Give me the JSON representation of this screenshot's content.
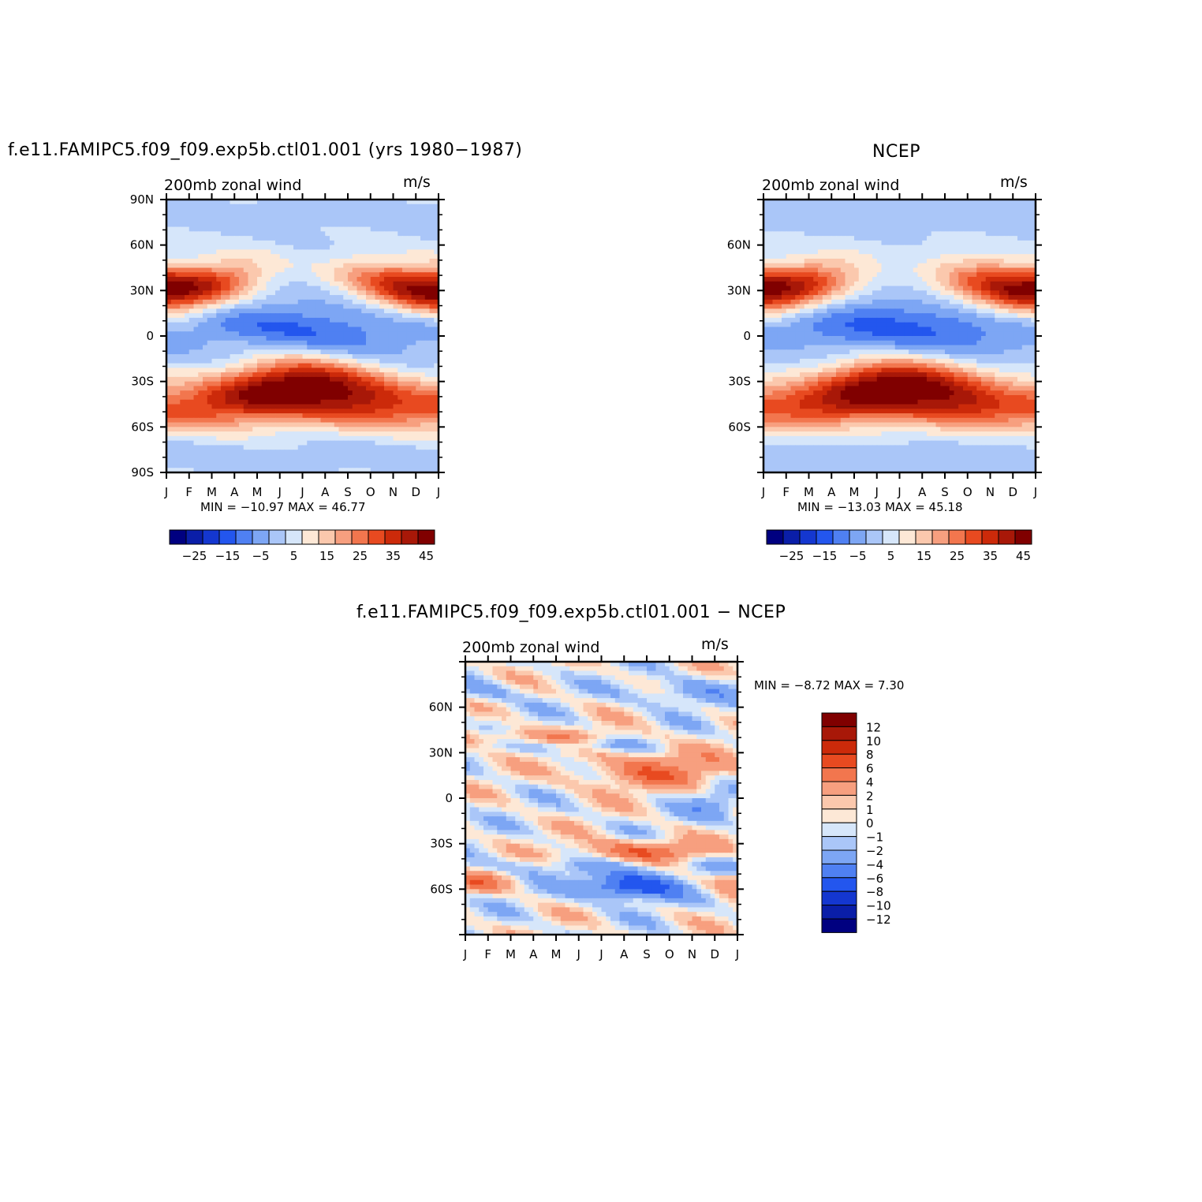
{
  "panels": [
    {
      "title": "f.e11.FAMIPC5.f09_f09.exp5b.ctl01.001 (yrs 1980−1987)",
      "left_label": "200mb zonal wind",
      "right_label": "m/s",
      "stats": "MIN = −10.97 MAX =   46.77"
    },
    {
      "title": "NCEP",
      "left_label": "200mb zonal wind",
      "right_label": "m/s",
      "stats": "MIN = −13.03 MAX =   45.18"
    },
    {
      "title": "f.e11.FAMIPC5.f09_f09.exp5b.ctl01.001 − NCEP",
      "left_label": "200mb zonal wind",
      "right_label": "m/s",
      "stats": "MIN =   −8.72 MAX =     7.30"
    }
  ],
  "colors": {
    "full_levels": [
      "#000080",
      "#0a1ea8",
      "#1437d0",
      "#2356ee",
      "#4f80f2",
      "#7da6f4",
      "#aac6f8",
      "#d6e6fa",
      "#fde8d6",
      "#fbc8ad",
      "#f79f7f",
      "#f2764e",
      "#e84a20",
      "#cc2a0a",
      "#a81808",
      "#800000"
    ],
    "diff_levels": [
      "#000080",
      "#0a1ea8",
      "#1437d0",
      "#2356ee",
      "#4f80f2",
      "#7da6f4",
      "#aac6f8",
      "#d6e6fa",
      "#fde8d6",
      "#fbc8ad",
      "#f79f7f",
      "#f2764e",
      "#e84a20",
      "#cc2a0a",
      "#a81808",
      "#800000"
    ]
  },
  "chart_data": [
    {
      "type": "heatmap",
      "title": "f.e11.FAMIPC5.f09_f09.exp5b.ctl01.001 (yrs 1980−1987)",
      "variable": "200mb zonal wind",
      "units": "m/s",
      "x_ticks": [
        "J",
        "F",
        "M",
        "A",
        "M",
        "J",
        "J",
        "A",
        "S",
        "O",
        "N",
        "D",
        "J"
      ],
      "y_ticks": [
        "90N",
        "60N",
        "30N",
        "0",
        "30S",
        "60S",
        "90S"
      ],
      "ylim": [
        "90S",
        "90N"
      ],
      "colorbar_labels": [
        "−25",
        "−15",
        "−5",
        "5",
        "15",
        "25",
        "35",
        "45"
      ],
      "min": -10.97,
      "max": 46.77,
      "features": [
        {
          "lat": 30,
          "month": 1.2,
          "value": 46
        },
        {
          "lat": 30,
          "month": 11.8,
          "value": 42
        },
        {
          "lat": -30,
          "month": 6.6,
          "value": 46
        },
        {
          "lat": 5,
          "month": 7.0,
          "value": -10
        }
      ]
    },
    {
      "type": "heatmap",
      "title": "NCEP",
      "variable": "200mb zonal wind",
      "units": "m/s",
      "x_ticks": [
        "J",
        "F",
        "M",
        "A",
        "M",
        "J",
        "J",
        "A",
        "S",
        "O",
        "N",
        "D",
        "J"
      ],
      "y_ticks": [
        "60N",
        "30N",
        "0",
        "30S",
        "60S"
      ],
      "colorbar_labels": [
        "−25",
        "−15",
        "−5",
        "5",
        "15",
        "25",
        "35",
        "45"
      ],
      "min": -13.03,
      "max": 45.18,
      "features": [
        {
          "lat": 30,
          "month": 1.2,
          "value": 44
        },
        {
          "lat": 30,
          "month": 12.0,
          "value": 41
        },
        {
          "lat": -30,
          "month": 7.0,
          "value": 43
        },
        {
          "lat": 5,
          "month": 7.0,
          "value": -13
        }
      ]
    },
    {
      "type": "heatmap",
      "title": "f.e11.FAMIPC5.f09_f09.exp5b.ctl01.001 − NCEP",
      "variable": "200mb zonal wind",
      "units": "m/s",
      "x_ticks": [
        "J",
        "F",
        "M",
        "A",
        "M",
        "J",
        "J",
        "A",
        "S",
        "O",
        "N",
        "D",
        "J"
      ],
      "y_ticks": [
        "60N",
        "30N",
        "0",
        "30S",
        "60S"
      ],
      "colorbar_labels": [
        "12",
        "10",
        "8",
        "6",
        "4",
        "2",
        "1",
        "0",
        "−1",
        "−2",
        "−4",
        "−6",
        "−8",
        "−10",
        "−12"
      ],
      "min": -8.72,
      "max": 7.3,
      "features": [
        {
          "lat": -58,
          "month": 7.2,
          "value": -8.5
        },
        {
          "lat": -35,
          "month": 7.8,
          "value": 6
        },
        {
          "lat": 18,
          "month": 9.0,
          "value": 5
        }
      ]
    }
  ]
}
